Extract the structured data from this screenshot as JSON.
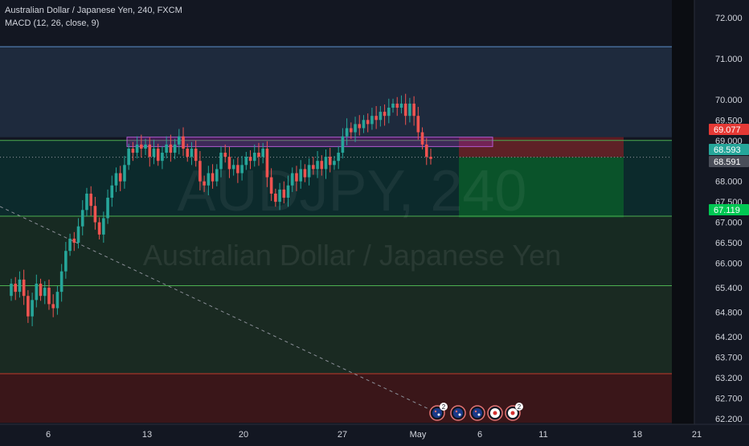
{
  "header": {
    "title": "Australian Dollar / Japanese Yen, 240, FXCM",
    "indicator": "MACD (12, 26, close, 9)"
  },
  "watermark": {
    "symbol": "AUDJPY, 240",
    "name": "Australian Dollar / Japanese Yen"
  },
  "colors": {
    "background": "#131722",
    "up": "#26a69a",
    "down": "#ef5350",
    "label_red": "#e53935",
    "label_teal": "#26a69a",
    "label_green": "#00c853",
    "label_gray": "#4a4e59"
  },
  "chart_data": {
    "type": "candlestick",
    "ylim": [
      62.1,
      72.2
    ],
    "y_ticks": [
      "72.000",
      "71.000",
      "70.000",
      "69.500",
      "69.000",
      "68.000",
      "67.500",
      "67.000",
      "66.500",
      "66.000",
      "65.400",
      "64.800",
      "64.200",
      "63.700",
      "63.200",
      "62.700",
      "62.200"
    ],
    "x_ticks": [
      "6",
      "13",
      "20",
      "27",
      "May",
      "6",
      "11",
      "18",
      "21"
    ],
    "price_labels": [
      {
        "text": "69.077",
        "value": 69.077,
        "style": "red"
      },
      {
        "text": "68.593",
        "value": 68.593,
        "style": "teal"
      },
      {
        "text": "68.591",
        "value": 68.591,
        "style": "gray"
      },
      {
        "text": "67.119",
        "value": 67.119,
        "style": "green"
      }
    ],
    "horizontal_lines": [
      {
        "value": 71.29,
        "color": "#5b8fcb"
      },
      {
        "value": 69.0,
        "color": "#4caf50"
      },
      {
        "value": 67.15,
        "color": "#4caf50"
      },
      {
        "value": 65.45,
        "color": "#4caf50"
      },
      {
        "value": 63.3,
        "color": "#c0392b"
      }
    ],
    "zones": [
      {
        "from": 69.08,
        "to": 71.29,
        "color": "#1e2a3d"
      },
      {
        "from": 67.15,
        "to": 69.0,
        "color": "#0c2a2c"
      },
      {
        "from": 65.45,
        "to": 67.15,
        "color": "#172a22"
      },
      {
        "from": 63.3,
        "to": 65.45,
        "color": "#1a2a22"
      },
      {
        "from": 62.1,
        "to": 63.3,
        "color": "#3a1619"
      }
    ],
    "resistance_band": {
      "from": 68.85,
      "to": 69.08
    },
    "position": {
      "entry": 68.59,
      "stop": 69.08,
      "target": 67.12
    },
    "series": [
      {
        "o": 65.2,
        "c": 65.5
      },
      {
        "o": 65.5,
        "c": 65.3
      },
      {
        "o": 65.3,
        "c": 65.6
      },
      {
        "o": 65.6,
        "c": 65.2
      },
      {
        "o": 65.2,
        "c": 64.7
      },
      {
        "o": 64.7,
        "c": 65.1
      },
      {
        "o": 65.1,
        "c": 65.5
      },
      {
        "o": 65.5,
        "c": 65.2
      },
      {
        "o": 65.2,
        "c": 65.4
      },
      {
        "o": 65.4,
        "c": 65.0
      },
      {
        "o": 65.0,
        "c": 64.9
      },
      {
        "o": 64.9,
        "c": 65.3
      },
      {
        "o": 65.3,
        "c": 65.8
      },
      {
        "o": 65.8,
        "c": 66.3
      },
      {
        "o": 66.3,
        "c": 66.6
      },
      {
        "o": 66.6,
        "c": 66.5
      },
      {
        "o": 66.5,
        "c": 66.9
      },
      {
        "o": 66.9,
        "c": 67.3
      },
      {
        "o": 67.3,
        "c": 67.7
      },
      {
        "o": 67.7,
        "c": 67.4
      },
      {
        "o": 67.4,
        "c": 67.0
      },
      {
        "o": 67.0,
        "c": 66.7
      },
      {
        "o": 66.7,
        "c": 67.1
      },
      {
        "o": 67.1,
        "c": 67.6
      },
      {
        "o": 67.6,
        "c": 67.9
      },
      {
        "o": 67.9,
        "c": 68.2
      },
      {
        "o": 68.2,
        "c": 68.0
      },
      {
        "o": 68.0,
        "c": 68.4
      },
      {
        "o": 68.4,
        "c": 68.8
      },
      {
        "o": 68.8,
        "c": 68.7
      },
      {
        "o": 68.7,
        "c": 68.9
      },
      {
        "o": 68.9,
        "c": 68.8
      },
      {
        "o": 68.8,
        "c": 68.9
      },
      {
        "o": 68.9,
        "c": 68.6
      },
      {
        "o": 68.6,
        "c": 68.8
      },
      {
        "o": 68.8,
        "c": 68.5
      },
      {
        "o": 68.5,
        "c": 68.7
      },
      {
        "o": 68.7,
        "c": 68.9
      },
      {
        "o": 68.9,
        "c": 68.7
      },
      {
        "o": 68.7,
        "c": 68.9
      },
      {
        "o": 68.9,
        "c": 69.1
      },
      {
        "o": 69.1,
        "c": 68.8
      },
      {
        "o": 68.8,
        "c": 68.6
      },
      {
        "o": 68.6,
        "c": 68.8
      },
      {
        "o": 68.8,
        "c": 68.5
      },
      {
        "o": 68.5,
        "c": 68.0
      },
      {
        "o": 68.0,
        "c": 67.9
      },
      {
        "o": 67.9,
        "c": 68.2
      },
      {
        "o": 68.2,
        "c": 68.0
      },
      {
        "o": 68.0,
        "c": 68.3
      },
      {
        "o": 68.3,
        "c": 68.7
      },
      {
        "o": 68.7,
        "c": 68.6
      },
      {
        "o": 68.6,
        "c": 68.3
      },
      {
        "o": 68.3,
        "c": 68.4
      },
      {
        "o": 68.4,
        "c": 68.2
      },
      {
        "o": 68.2,
        "c": 68.4
      },
      {
        "o": 68.4,
        "c": 68.6
      },
      {
        "o": 68.6,
        "c": 68.5
      },
      {
        "o": 68.5,
        "c": 68.7
      },
      {
        "o": 68.7,
        "c": 68.6
      },
      {
        "o": 68.6,
        "c": 68.8
      },
      {
        "o": 68.8,
        "c": 68.1
      },
      {
        "o": 68.1,
        "c": 67.7
      },
      {
        "o": 67.7,
        "c": 67.5
      },
      {
        "o": 67.5,
        "c": 67.8
      },
      {
        "o": 67.8,
        "c": 67.6
      },
      {
        "o": 67.6,
        "c": 67.9
      },
      {
        "o": 67.9,
        "c": 68.2
      },
      {
        "o": 68.2,
        "c": 68.0
      },
      {
        "o": 68.0,
        "c": 68.3
      },
      {
        "o": 68.3,
        "c": 68.1
      },
      {
        "o": 68.1,
        "c": 68.4
      },
      {
        "o": 68.4,
        "c": 68.3
      },
      {
        "o": 68.3,
        "c": 68.5
      },
      {
        "o": 68.5,
        "c": 68.3
      },
      {
        "o": 68.3,
        "c": 68.6
      },
      {
        "o": 68.6,
        "c": 68.4
      },
      {
        "o": 68.4,
        "c": 68.5
      },
      {
        "o": 68.5,
        "c": 68.7
      },
      {
        "o": 68.7,
        "c": 69.1
      },
      {
        "o": 69.1,
        "c": 69.3
      },
      {
        "o": 69.3,
        "c": 69.2
      },
      {
        "o": 69.2,
        "c": 69.4
      },
      {
        "o": 69.4,
        "c": 69.3
      },
      {
        "o": 69.3,
        "c": 69.5
      },
      {
        "o": 69.5,
        "c": 69.4
      },
      {
        "o": 69.4,
        "c": 69.6
      },
      {
        "o": 69.6,
        "c": 69.5
      },
      {
        "o": 69.5,
        "c": 69.7
      },
      {
        "o": 69.7,
        "c": 69.6
      },
      {
        "o": 69.6,
        "c": 69.8
      },
      {
        "o": 69.8,
        "c": 69.9
      },
      {
        "o": 69.9,
        "c": 69.8
      },
      {
        "o": 69.8,
        "c": 69.9
      },
      {
        "o": 69.9,
        "c": 69.6
      },
      {
        "o": 69.6,
        "c": 69.9
      },
      {
        "o": 69.9,
        "c": 69.6
      },
      {
        "o": 69.6,
        "c": 69.2
      },
      {
        "o": 69.2,
        "c": 68.9
      },
      {
        "o": 68.9,
        "c": 68.6
      },
      {
        "o": 68.6,
        "c": 68.55
      }
    ],
    "event_markers": [
      {
        "icon": "au-flag-icon",
        "badge": "2"
      },
      {
        "icon": "au-flag-icon",
        "badge": ""
      },
      {
        "icon": "au-flag-icon",
        "badge": ""
      },
      {
        "icon": "jp-flag-icon",
        "badge": ""
      },
      {
        "icon": "jp-flag-icon",
        "badge": "2"
      }
    ]
  }
}
